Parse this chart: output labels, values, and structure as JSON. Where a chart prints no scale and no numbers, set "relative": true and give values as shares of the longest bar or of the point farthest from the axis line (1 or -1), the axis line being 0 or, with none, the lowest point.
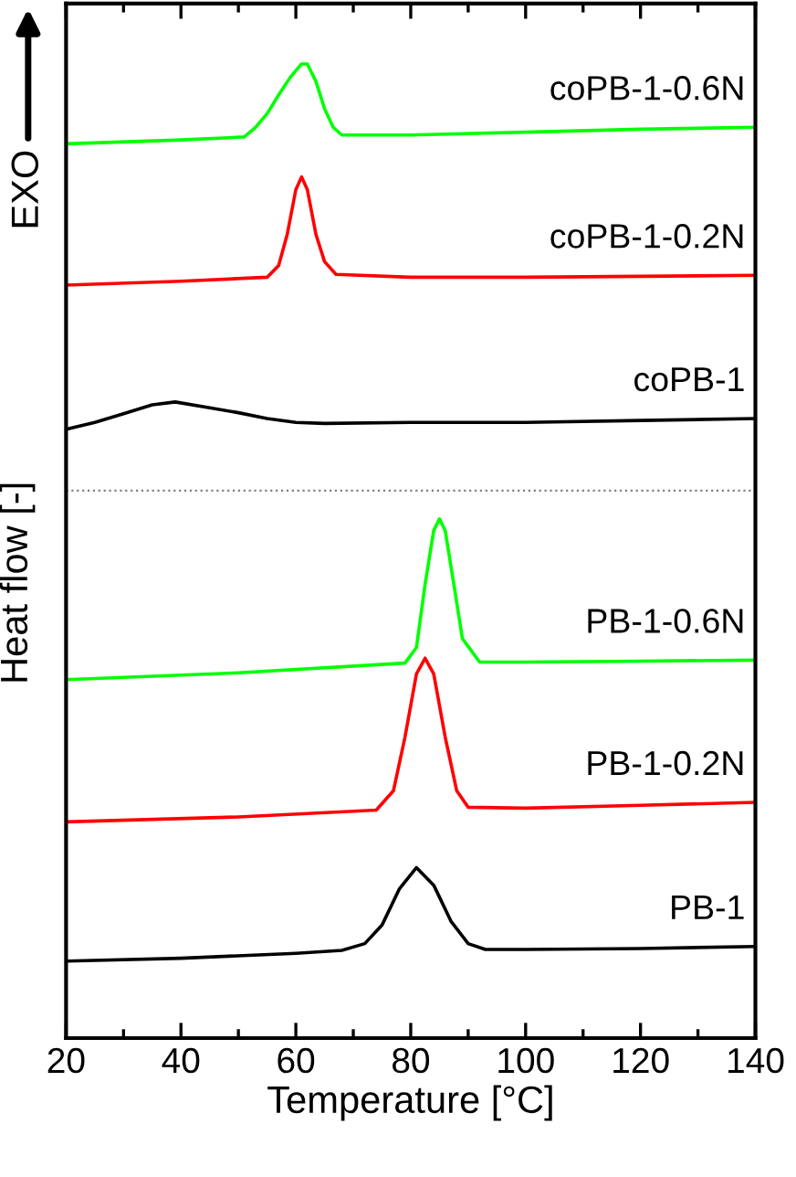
{
  "chart_data": {
    "type": "line",
    "relative": true,
    "xlabel": "Temperature [°C]",
    "ylabel": "Heat flow [-]",
    "annotations": [
      "EXO"
    ],
    "xlim": [
      20,
      140
    ],
    "xticks": [
      20,
      {
        "value": 30,
        "label": null
      },
      40,
      {
        "value": 50,
        "label": null
      },
      60,
      {
        "value": 70,
        "label": null
      },
      80,
      {
        "value": 90,
        "label": null
      },
      100,
      {
        "value": 110,
        "label": null
      },
      120,
      {
        "value": 130,
        "label": null
      },
      140
    ],
    "grid": false,
    "legend": false,
    "marker": "none",
    "line_style": "solid",
    "tick_labels": "x",
    "ref_lines": [
      {
        "axis": "y",
        "value": 0.562,
        "color": "#808080",
        "line_style": "dotted"
      }
    ],
    "series": [
      {
        "name": "PB-1",
        "color": "#000000",
        "x": [
          20,
          40,
          60,
          68,
          72,
          75,
          78,
          81,
          84,
          87,
          90,
          93,
          100,
          120,
          140
        ],
        "values": [
          0.079,
          0.082,
          0.087,
          0.09,
          0.097,
          0.116,
          0.153,
          0.175,
          0.157,
          0.12,
          0.097,
          0.091,
          0.091,
          0.092,
          0.094
        ]
      },
      {
        "name": "PB-1-0.2N",
        "color": "#ff0000",
        "x": [
          20,
          50,
          74,
          77,
          79,
          81,
          82.5,
          84,
          86,
          88,
          90,
          100,
          120,
          140
        ],
        "values": [
          0.222,
          0.227,
          0.234,
          0.254,
          0.309,
          0.374,
          0.39,
          0.374,
          0.309,
          0.254,
          0.237,
          0.236,
          0.239,
          0.242
        ]
      },
      {
        "name": "PB-1-0.6N",
        "color": "#00ff00",
        "x": [
          20,
          50,
          79,
          81,
          82.5,
          84,
          85,
          86,
          87.5,
          89,
          92,
          100,
          120,
          140
        ],
        "values": [
          0.368,
          0.375,
          0.385,
          0.401,
          0.466,
          0.521,
          0.533,
          0.521,
          0.466,
          0.41,
          0.386,
          0.386,
          0.387,
          0.388
        ]
      },
      {
        "name": "coPB-1",
        "color": "#000000",
        "x": [
          20,
          25,
          30,
          35,
          39,
          45,
          50,
          55,
          60,
          65,
          80,
          100,
          120,
          140
        ],
        "values": [
          0.625,
          0.632,
          0.641,
          0.65,
          0.653,
          0.647,
          0.642,
          0.636,
          0.632,
          0.631,
          0.632,
          0.632,
          0.634,
          0.636
        ]
      },
      {
        "name": "coPB-1-0.2N",
        "color": "#ff0000",
        "x": [
          20,
          40,
          55,
          57,
          58.5,
          60,
          61,
          62,
          63.5,
          65,
          67,
          80,
          100,
          120,
          140
        ],
        "values": [
          0.773,
          0.777,
          0.781,
          0.793,
          0.825,
          0.871,
          0.884,
          0.871,
          0.825,
          0.797,
          0.784,
          0.781,
          0.781,
          0.782,
          0.783
        ]
      },
      {
        "name": "coPB-1-0.6N",
        "color": "#00ff00",
        "x": [
          20,
          40,
          51,
          53,
          55,
          57,
          59,
          61,
          62,
          63.5,
          65,
          66.5,
          68,
          80,
          100,
          120,
          140
        ],
        "values": [
          0.918,
          0.922,
          0.925,
          0.935,
          0.949,
          0.968,
          0.986,
          1.0,
          1.0,
          0.982,
          0.954,
          0.935,
          0.927,
          0.927,
          0.93,
          0.933,
          0.935
        ]
      }
    ]
  }
}
